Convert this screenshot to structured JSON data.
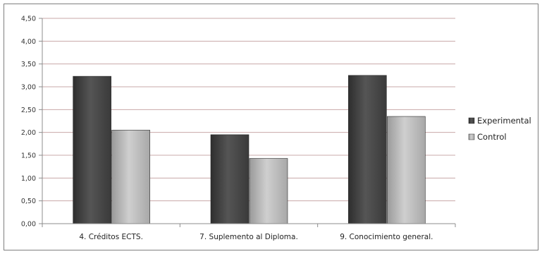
{
  "chart_data": {
    "type": "bar",
    "categories": [
      "4. Créditos ECTS.",
      "7. Suplemento al Diploma.",
      "9. Conocimiento general."
    ],
    "series": [
      {
        "name": "Experimental",
        "values": [
          3.23,
          1.95,
          3.25
        ],
        "color": "#4a4a4a"
      },
      {
        "name": "Control",
        "values": [
          2.05,
          1.43,
          2.35
        ],
        "color": "#bdbdbd"
      }
    ],
    "ylim": [
      0,
      4.5
    ],
    "yticks": [
      "0,00",
      "0,50",
      "1,00",
      "1,50",
      "2,00",
      "2,50",
      "3,00",
      "3,50",
      "4,00",
      "4,50"
    ],
    "grid": true,
    "legend_position": "right"
  }
}
